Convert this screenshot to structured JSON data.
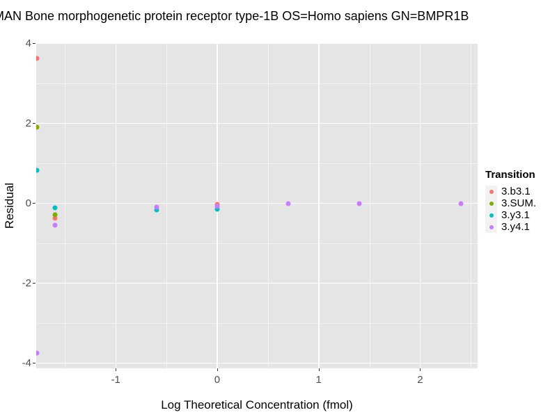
{
  "figure": {
    "background": "#FFFFFF",
    "panel_background": "#E5E5E5",
    "gridline_color": "#FFFFFF",
    "tick_mark_color": "#333333",
    "tick_label_color": "#4D4D4D",
    "text_color": "#000000",
    "legend_key_background": "#F2F2F2"
  },
  "chart_data": {
    "type": "scatter",
    "title": "MAN Bone morphogenetic protein receptor type-1B OS=Homo sapiens GN=BMPR1B",
    "xlabel": "Log Theoretical Concentration (fmol)",
    "ylabel": "Residual",
    "xlim": [
      -1.784,
      2.567
    ],
    "ylim": [
      -4.139,
      4.0
    ],
    "x_major_ticks": [
      -1,
      0,
      1,
      2
    ],
    "x_tick_labels": [
      "-1",
      "0",
      "1",
      "2"
    ],
    "x_minor_gridlines": [
      -1.5,
      -0.5,
      0.5,
      1.5,
      2.5
    ],
    "y_major_ticks": [
      -4,
      -2,
      0,
      2,
      4
    ],
    "y_tick_labels": [
      "-4",
      "-2",
      "0",
      "2",
      "4"
    ],
    "y_minor_gridlines": [
      -3,
      -1,
      1,
      3
    ],
    "grid": "white major and minor gridlines on gray panel",
    "legend": {
      "title": "Transition",
      "position": "right"
    },
    "series": [
      {
        "name": "3.b3.1",
        "color": "#F8766D",
        "points": [
          [
            -1.78,
            3.62
          ],
          [
            -1.6,
            -0.38
          ],
          [
            0.0,
            -0.04
          ]
        ]
      },
      {
        "name": "3.SUM.",
        "color": "#7CAE00",
        "points": [
          [
            -1.78,
            1.9
          ],
          [
            -1.6,
            -0.3
          ]
        ]
      },
      {
        "name": "3.y3.1",
        "color": "#00BFC4",
        "points": [
          [
            -1.78,
            0.82
          ],
          [
            -1.6,
            -0.12
          ],
          [
            -0.6,
            -0.17
          ],
          [
            0.0,
            -0.15
          ]
        ]
      },
      {
        "name": "3.y4.1",
        "color": "#C77CFF",
        "points": [
          [
            -1.78,
            -3.76
          ],
          [
            -1.6,
            -0.55
          ],
          [
            -0.6,
            -0.1
          ],
          [
            0.0,
            -0.09
          ],
          [
            0.7,
            -0.01
          ],
          [
            1.4,
            -0.01
          ],
          [
            2.4,
            -0.01
          ]
        ]
      }
    ]
  }
}
